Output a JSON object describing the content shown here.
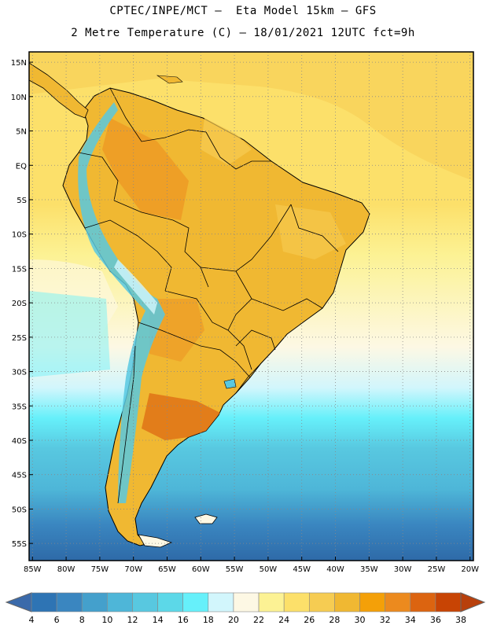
{
  "header": {
    "line1": "CPTEC/INPE/MCT –  Eta Model 15km – GFS",
    "line2": "2 Metre Temperature (C) – 18/01/2021 12UTC fct=9h"
  },
  "map": {
    "lat_labels": [
      "15N",
      "10N",
      "5N",
      "EQ",
      "5S",
      "10S",
      "15S",
      "20S",
      "25S",
      "30S",
      "35S",
      "40S",
      "45S",
      "50S",
      "55S"
    ],
    "lon_labels": [
      "85W",
      "80W",
      "75W",
      "70W",
      "65W",
      "60W",
      "55W",
      "50W",
      "45W",
      "40W",
      "35W",
      "30W",
      "25W",
      "20W"
    ],
    "lat_values": [
      15,
      10,
      5,
      0,
      -5,
      -10,
      -15,
      -20,
      -25,
      -30,
      -35,
      -40,
      -45,
      -50,
      -55
    ],
    "lon_values": [
      -85,
      -80,
      -75,
      -70,
      -65,
      -60,
      -55,
      -50,
      -45,
      -40,
      -35,
      -30,
      -25,
      -20
    ],
    "extent": {
      "lon_min": -85.5,
      "lon_max": -19.5,
      "lat_min": -57.5,
      "lat_max": 16.5
    },
    "gridlines": true
  },
  "colorbar": {
    "labels": [
      "4",
      "6",
      "8",
      "10",
      "12",
      "14",
      "16",
      "18",
      "20",
      "22",
      "24",
      "26",
      "28",
      "30",
      "32",
      "34",
      "36",
      "38"
    ],
    "colors": [
      "#2e74b4",
      "#3a86c0",
      "#44a0cc",
      "#4eb6d8",
      "#58c8e0",
      "#5cd8e8",
      "#66f0fa",
      "#d2f6fc",
      "#fdf8e4",
      "#fcf294",
      "#fce06a",
      "#f6cc52",
      "#f0b832",
      "#f4a008",
      "#ec8a1e",
      "#dc6410",
      "#c84404"
    ],
    "low_color": "#3a6aaa",
    "high_color": "#b8400c"
  }
}
